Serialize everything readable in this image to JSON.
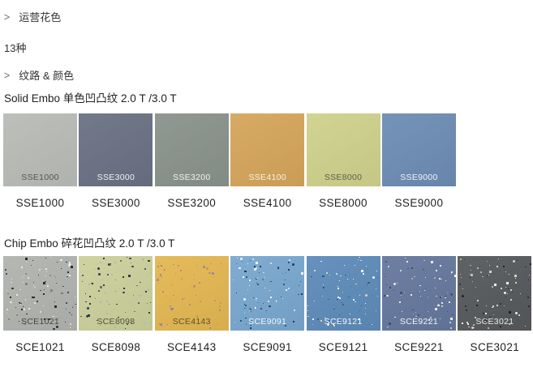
{
  "header": {
    "chevron_char": ">",
    "crumb_operating": "运营花色",
    "count": "13种",
    "crumb_texture": "纹路 & 颜色"
  },
  "sections": [
    {
      "id": "solid-embo",
      "title": "Solid Embo 单色凹凸纹 2.0 T /3.0 T",
      "swatches": [
        {
          "code": "SSE1000",
          "base": "#b9bbb7",
          "code_color": "#54584f",
          "speckles": []
        },
        {
          "code": "SSE3000",
          "base": "#6a7183",
          "code_color": "#f2f2f2",
          "speckles": []
        },
        {
          "code": "SSE3200",
          "base": "#89928b",
          "code_color": "#f2f2f2",
          "speckles": []
        },
        {
          "code": "SSE4100",
          "base": "#d5a55b",
          "code_color": "#f8f3e3",
          "speckles": []
        },
        {
          "code": "SSE8000",
          "base": "#cfd18c",
          "code_color": "#5d604a",
          "speckles": []
        },
        {
          "code": "SSE9000",
          "base": "#6d8cb4",
          "code_color": "#f2f4f7",
          "speckles": []
        }
      ]
    },
    {
      "id": "chip-embo",
      "title": "Chip Embo 碎花凹凸纹 2.0 T /3.0 T",
      "swatches": [
        {
          "code": "SCE1021",
          "base": "#b1b3af",
          "code_color": "#454545",
          "speckles": [
            {
              "color": "#2b2b2b",
              "count": 48
            },
            {
              "color": "#ebebdf",
              "count": 42
            },
            {
              "color": "#787d78",
              "count": 16
            }
          ]
        },
        {
          "code": "SCE8098",
          "base": "#ccd09b",
          "code_color": "#4f5438",
          "speckles": [
            {
              "color": "#2e3a52",
              "count": 44
            },
            {
              "color": "#9bb9c6",
              "count": 28
            },
            {
              "color": "#6b7d52",
              "count": 14
            }
          ]
        },
        {
          "code": "SCE4143",
          "base": "#e3b751",
          "code_color": "#5f5230",
          "speckles": [
            {
              "color": "#c5837f",
              "count": 24
            },
            {
              "color": "#8d86ab",
              "count": 18
            },
            {
              "color": "#c9964a",
              "count": 14
            }
          ]
        },
        {
          "code": "SCE9091",
          "base": "#79a7cf",
          "code_color": "#f4f7fa",
          "speckles": [
            {
              "color": "#1d3a66",
              "count": 38
            },
            {
              "color": "#f2f3ee",
              "count": 36
            },
            {
              "color": "#3f6d9e",
              "count": 14
            }
          ]
        },
        {
          "code": "SCE9121",
          "base": "#5d8bb9",
          "code_color": "#f4f7fa",
          "speckles": [
            {
              "color": "#eff1e9",
              "count": 40
            },
            {
              "color": "#2f5480",
              "count": 22
            },
            {
              "color": "#d9d3be",
              "count": 12
            }
          ]
        },
        {
          "code": "SCE9221",
          "base": "#64789d",
          "code_color": "#f4f5f7",
          "speckles": [
            {
              "color": "#eee9da",
              "count": 44
            },
            {
              "color": "#3c4a68",
              "count": 20
            },
            {
              "color": "#c9bfa6",
              "count": 14
            }
          ]
        },
        {
          "code": "SCE3021",
          "base": "#56595c",
          "code_color": "#e9e9e7",
          "speckles": [
            {
              "color": "#d9d0bd",
              "count": 44
            },
            {
              "color": "#232323",
              "count": 26
            },
            {
              "color": "#f0efe9",
              "count": 14
            }
          ]
        }
      ]
    }
  ]
}
